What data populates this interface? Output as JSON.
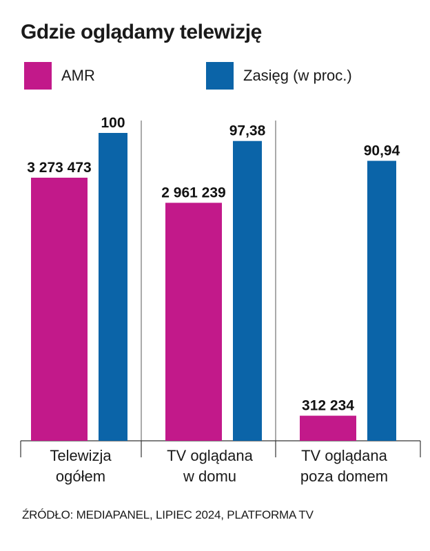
{
  "title": "Gdzie oglądamy telewizję",
  "legend": [
    {
      "label": "AMR",
      "color": "#C2198A"
    },
    {
      "label": "Zasięg (w proc.)",
      "color": "#0B64A8"
    }
  ],
  "source": "ŹRÓDŁO: MEDIAPANEL, LIPIEC 2024, PLATFORMA TV",
  "chart_data": {
    "type": "bar",
    "title": "Gdzie oglądamy telewizję",
    "categories": [
      [
        "Telewizja",
        "ogółem"
      ],
      [
        "TV oglądana",
        "w domu"
      ],
      [
        "TV oglądana",
        "poza domem"
      ]
    ],
    "series": [
      {
        "name": "AMR",
        "color": "#C2198A",
        "values": [
          3273473,
          2961239,
          312234
        ],
        "labels": [
          "3 273 473",
          "2 961 239",
          "312 234"
        ]
      },
      {
        "name": "Zasięg (w proc.)",
        "color": "#0B64A8",
        "values": [
          100,
          97.38,
          90.94
        ],
        "labels": [
          "100",
          "97,38",
          "90,94"
        ]
      }
    ],
    "xlabel": "",
    "ylabel": "",
    "grid": false,
    "legend_position": "top"
  }
}
